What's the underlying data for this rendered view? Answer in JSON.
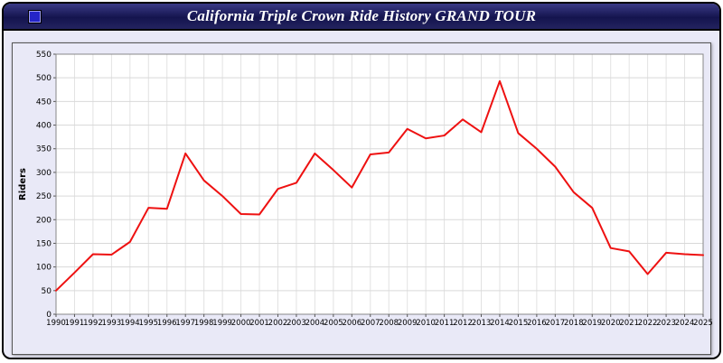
{
  "header": {
    "title": "California Triple Crown Ride History GRAND TOUR",
    "legend_color": "#2525c8"
  },
  "chart_data": {
    "type": "line",
    "title": "California Triple Crown Ride History GRAND TOUR",
    "xlabel": "",
    "ylabel": "Riders",
    "ylim": [
      0,
      550
    ],
    "ytick_interval": 50,
    "grid": true,
    "legend_position": "none",
    "line_color": "#ee1111",
    "plot_background": "#ffffff",
    "categories": [
      1990,
      1991,
      1992,
      1993,
      1994,
      1995,
      1996,
      1997,
      1998,
      1999,
      2000,
      2001,
      2002,
      2003,
      2004,
      2005,
      2006,
      2007,
      2008,
      2009,
      2010,
      2011,
      2012,
      2013,
      2014,
      2015,
      2016,
      2017,
      2018,
      2019,
      2020,
      2021,
      2022,
      2023,
      2024,
      2025
    ],
    "series": [
      {
        "name": "Riders",
        "values": [
          50,
          88,
          127,
          126,
          153,
          225,
          223,
          340,
          283,
          250,
          212,
          211,
          265,
          278,
          340,
          305,
          268,
          338,
          342,
          392,
          372,
          378,
          412,
          385,
          493,
          383,
          350,
          312,
          258,
          225,
          140,
          133,
          85,
          130,
          127,
          125
        ]
      }
    ]
  }
}
